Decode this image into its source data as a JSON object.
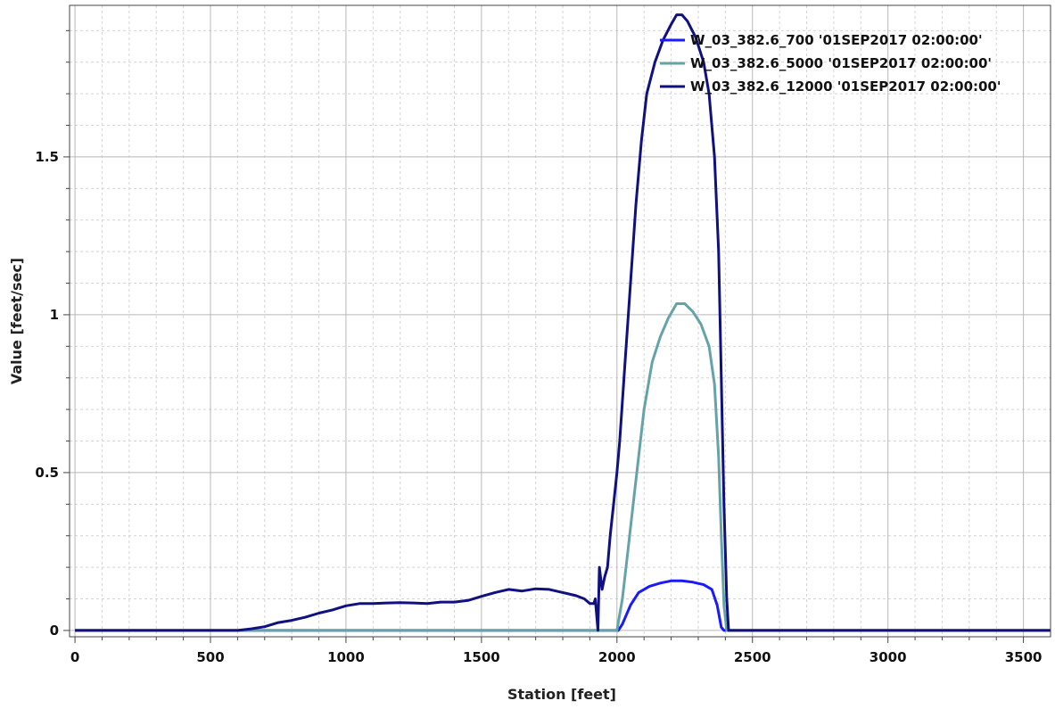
{
  "chart_data": {
    "type": "line",
    "xlabel": "Station [feet]",
    "ylabel": "Value [feet/sec]",
    "xlim": [
      -20,
      3600
    ],
    "ylim": [
      -0.02,
      1.98
    ],
    "x_ticks": [
      0,
      500,
      1000,
      1500,
      2000,
      2500,
      3000,
      3500
    ],
    "x_tick_labels": [
      "0",
      "500",
      "1000",
      "1500",
      "2000",
      "2500",
      "3000",
      "3500"
    ],
    "y_ticks": [
      0,
      0.5,
      1,
      1.5
    ],
    "y_tick_labels": [
      "0",
      "0.5",
      "1",
      "1.5"
    ],
    "grid": true,
    "legend_position": "top-right",
    "series": [
      {
        "name": "W_03_382.6_700 '01SEP2017 02:00:00'",
        "color": "#1a1aff",
        "points": [
          [
            0,
            0
          ],
          [
            2005,
            0
          ],
          [
            2020,
            0.02
          ],
          [
            2050,
            0.08
          ],
          [
            2080,
            0.12
          ],
          [
            2120,
            0.14
          ],
          [
            2160,
            0.15
          ],
          [
            2200,
            0.157
          ],
          [
            2240,
            0.157
          ],
          [
            2280,
            0.153
          ],
          [
            2320,
            0.145
          ],
          [
            2350,
            0.13
          ],
          [
            2370,
            0.08
          ],
          [
            2385,
            0.01
          ],
          [
            2395,
            0
          ],
          [
            3600,
            0
          ]
        ]
      },
      {
        "name": "W_03_382.6_5000 '01SEP2017 02:00:00'",
        "color": "#66a3a8",
        "points": [
          [
            0,
            0
          ],
          [
            2000,
            0
          ],
          [
            2020,
            0.1
          ],
          [
            2040,
            0.25
          ],
          [
            2060,
            0.4
          ],
          [
            2080,
            0.55
          ],
          [
            2100,
            0.7
          ],
          [
            2130,
            0.85
          ],
          [
            2160,
            0.93
          ],
          [
            2190,
            0.99
          ],
          [
            2220,
            1.035
          ],
          [
            2250,
            1.035
          ],
          [
            2280,
            1.01
          ],
          [
            2310,
            0.97
          ],
          [
            2340,
            0.9
          ],
          [
            2360,
            0.78
          ],
          [
            2375,
            0.55
          ],
          [
            2385,
            0.3
          ],
          [
            2395,
            0.08
          ],
          [
            2405,
            0
          ],
          [
            3600,
            0
          ]
        ]
      },
      {
        "name": "W_03_382.6_12000 '01SEP2017 02:00:00'",
        "color": "#101080",
        "points": [
          [
            0,
            0
          ],
          [
            600,
            0
          ],
          [
            650,
            0.005
          ],
          [
            700,
            0.012
          ],
          [
            750,
            0.025
          ],
          [
            800,
            0.032
          ],
          [
            850,
            0.042
          ],
          [
            900,
            0.055
          ],
          [
            950,
            0.065
          ],
          [
            1000,
            0.078
          ],
          [
            1050,
            0.085
          ],
          [
            1100,
            0.085
          ],
          [
            1150,
            0.087
          ],
          [
            1200,
            0.088
          ],
          [
            1250,
            0.087
          ],
          [
            1300,
            0.085
          ],
          [
            1350,
            0.09
          ],
          [
            1400,
            0.09
          ],
          [
            1450,
            0.095
          ],
          [
            1500,
            0.108
          ],
          [
            1550,
            0.12
          ],
          [
            1600,
            0.13
          ],
          [
            1650,
            0.125
          ],
          [
            1700,
            0.132
          ],
          [
            1750,
            0.13
          ],
          [
            1800,
            0.12
          ],
          [
            1850,
            0.11
          ],
          [
            1880,
            0.1
          ],
          [
            1900,
            0.085
          ],
          [
            1915,
            0.085
          ],
          [
            1920,
            0.1
          ],
          [
            1925,
            0.05
          ],
          [
            1930,
            0
          ],
          [
            1935,
            0.2
          ],
          [
            1945,
            0.13
          ],
          [
            1955,
            0.17
          ],
          [
            1965,
            0.2
          ],
          [
            1975,
            0.3
          ],
          [
            1990,
            0.42
          ],
          [
            2000,
            0.5
          ],
          [
            2010,
            0.6
          ],
          [
            2030,
            0.85
          ],
          [
            2050,
            1.1
          ],
          [
            2070,
            1.35
          ],
          [
            2090,
            1.55
          ],
          [
            2110,
            1.7
          ],
          [
            2140,
            1.8
          ],
          [
            2170,
            1.87
          ],
          [
            2200,
            1.92
          ],
          [
            2220,
            1.95
          ],
          [
            2240,
            1.95
          ],
          [
            2260,
            1.93
          ],
          [
            2290,
            1.88
          ],
          [
            2320,
            1.8
          ],
          [
            2340,
            1.7
          ],
          [
            2360,
            1.5
          ],
          [
            2375,
            1.2
          ],
          [
            2385,
            0.8
          ],
          [
            2395,
            0.4
          ],
          [
            2405,
            0.1
          ],
          [
            2412,
            0
          ],
          [
            3600,
            0
          ]
        ]
      }
    ]
  }
}
